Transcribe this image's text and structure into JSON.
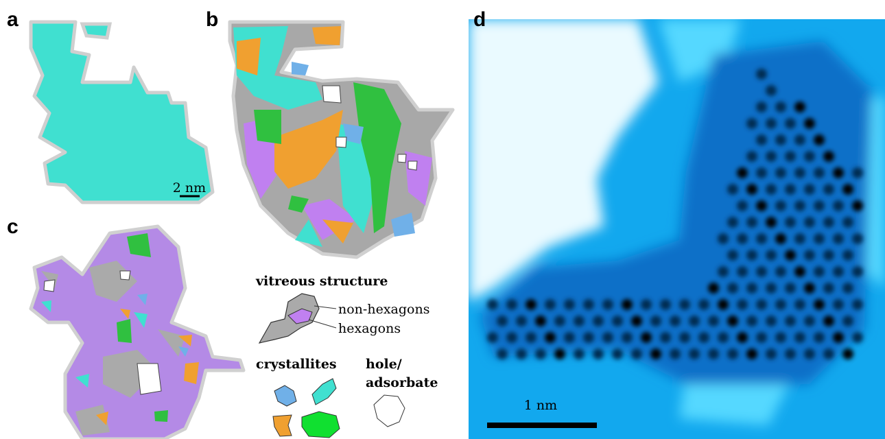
{
  "panels": {
    "a": {
      "label": "a",
      "scale_bar": "2 nm"
    },
    "b": {
      "label": "b"
    },
    "c": {
      "label": "c"
    },
    "d": {
      "label": "d",
      "scale_bar": "1 nm"
    }
  },
  "legend": {
    "vitreous_title": "vitreous structure",
    "non_hexagons": "non-hexagons",
    "hexagons": "hexagons",
    "crystallites": "crystallites",
    "hole": [
      "hole/",
      "adsorbate"
    ]
  }
}
